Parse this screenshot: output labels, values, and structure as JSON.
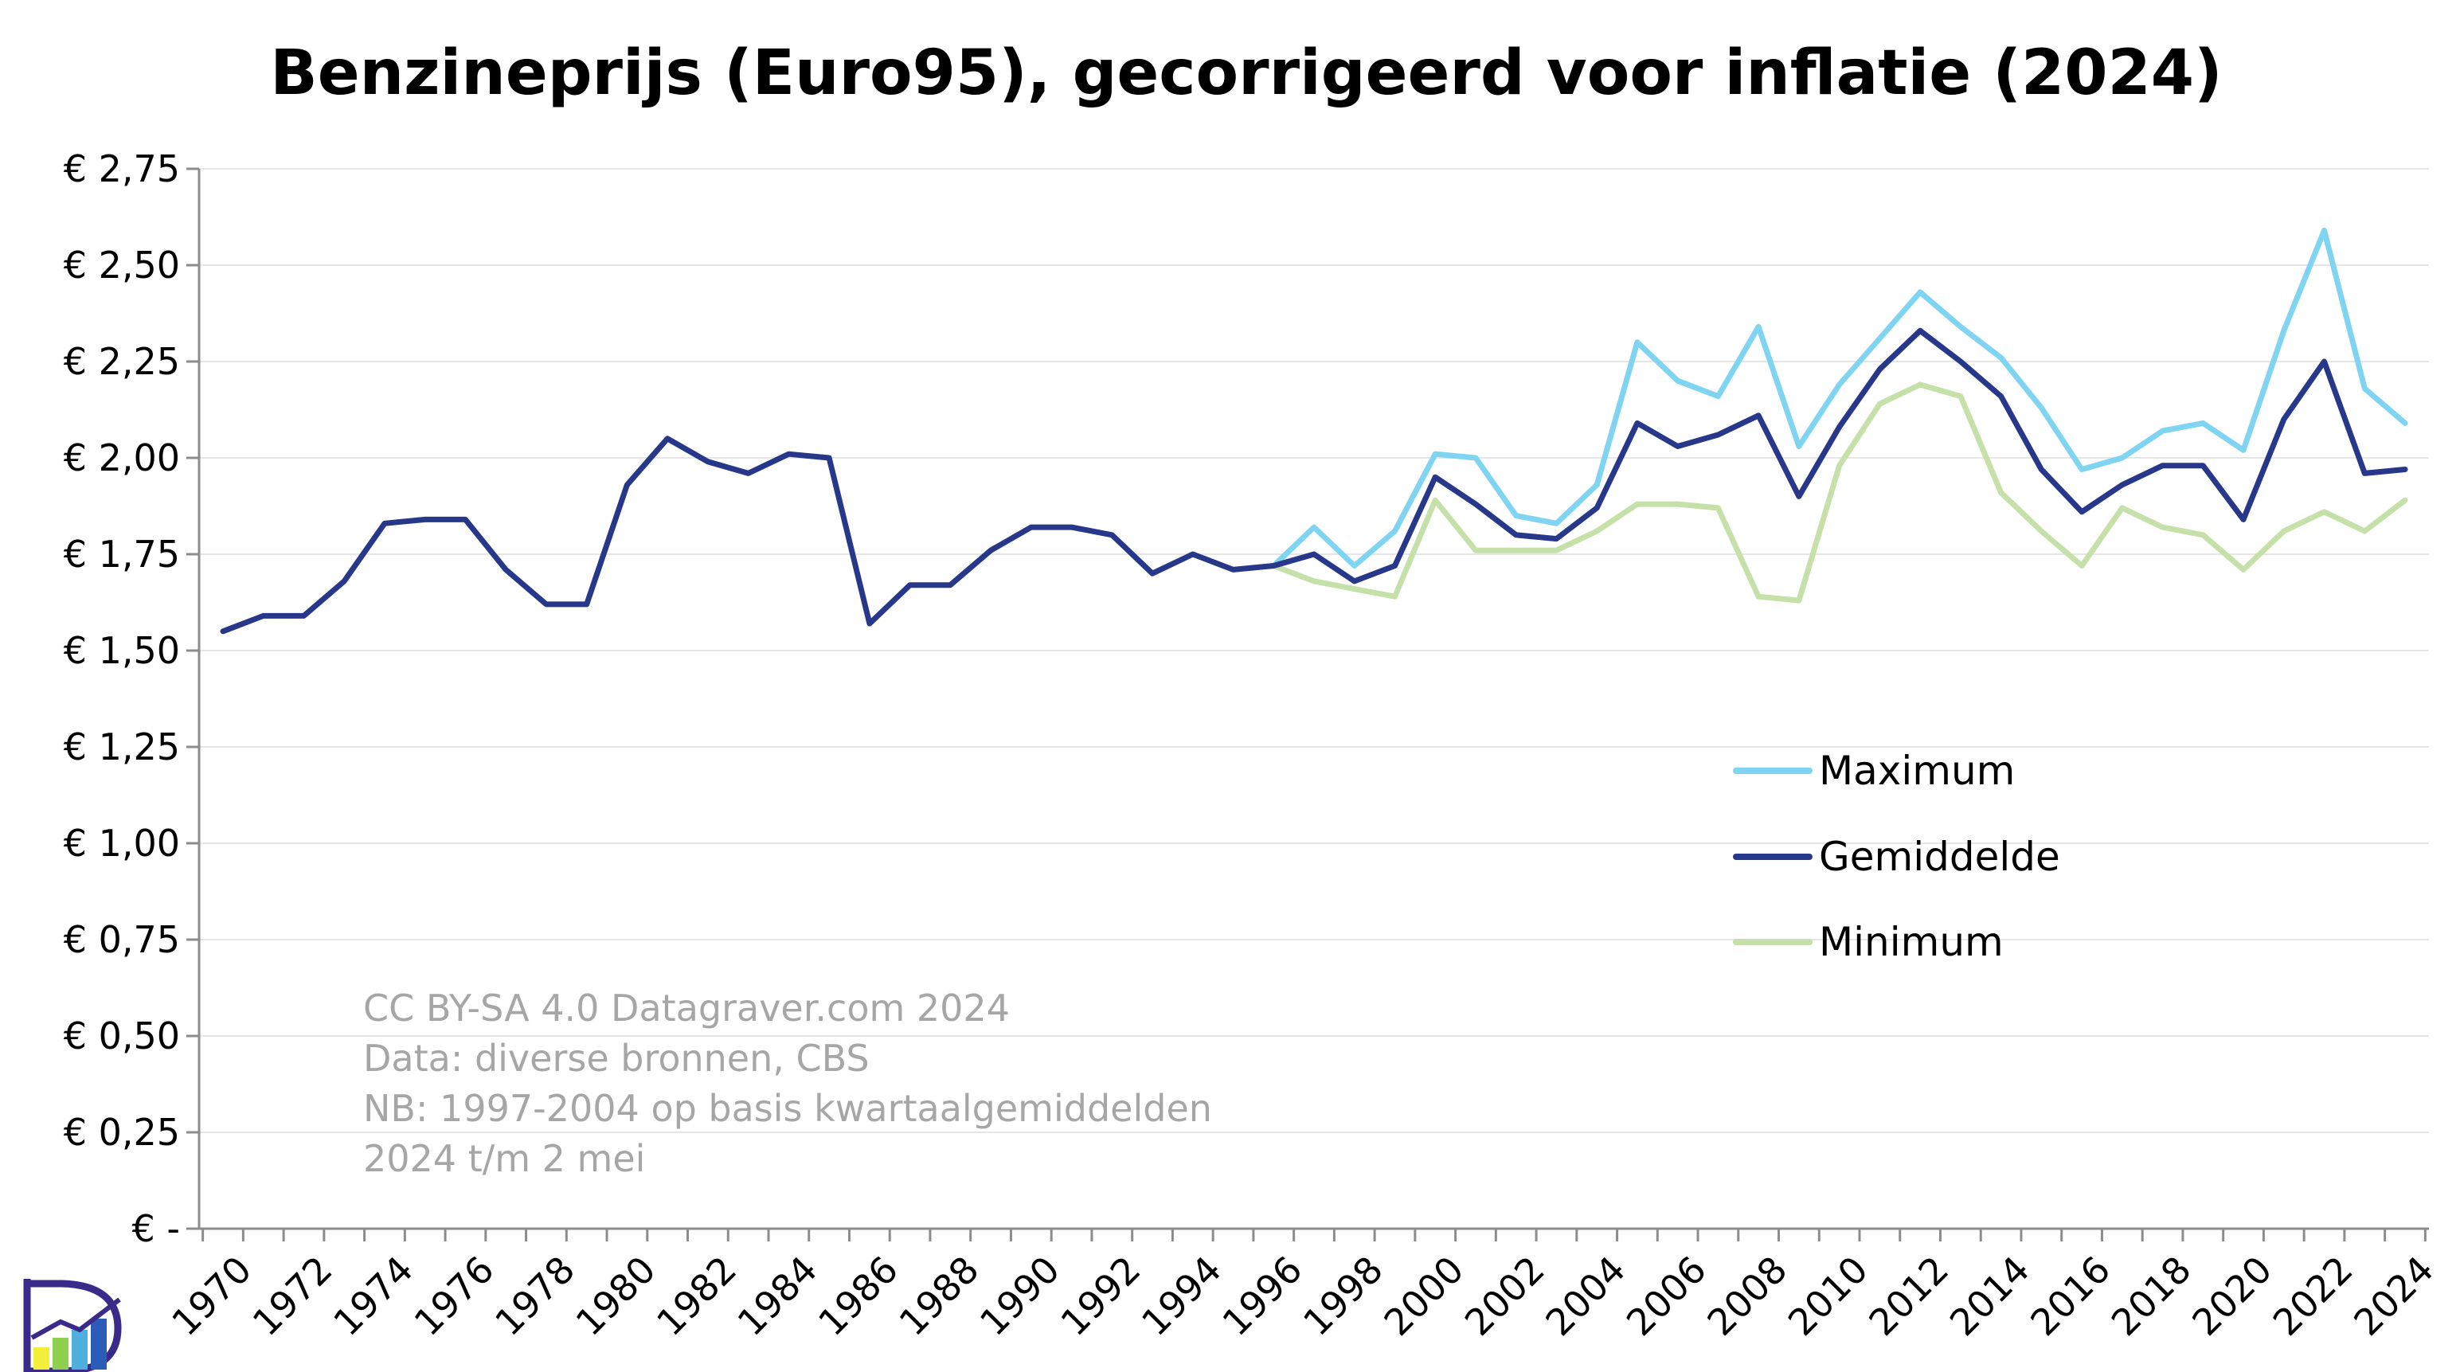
{
  "chart_data": {
    "type": "line",
    "title": "Benzineprijs (Euro95), gecorrigeerd voor inflatie (2024)",
    "xlabel": "",
    "ylabel": "",
    "ylim": [
      0,
      2.75
    ],
    "yticks": [
      0,
      0.25,
      0.5,
      0.75,
      1.0,
      1.25,
      1.5,
      1.75,
      2.0,
      2.25,
      2.5,
      2.75
    ],
    "ytick_labels": [
      "€ -",
      "€ 0,25",
      "€ 0,50",
      "€ 0,75",
      "€ 1,00",
      "€ 1,25",
      "€ 1,50",
      "€ 1,75",
      "€ 2,00",
      "€ 2,25",
      "€ 2,50",
      "€ 2,75"
    ],
    "xlim": [
      1970,
      2024
    ],
    "xticks": [
      1970,
      1972,
      1974,
      1976,
      1978,
      1980,
      1982,
      1984,
      1986,
      1988,
      1990,
      1992,
      1994,
      1996,
      1998,
      2000,
      2002,
      2004,
      2006,
      2008,
      2010,
      2012,
      2014,
      2016,
      2018,
      2020,
      2022,
      2024
    ],
    "grid": true,
    "legend_position": "right-middle",
    "series": [
      {
        "name": "Maximum",
        "color": "#7fd4f2",
        "x": [
          1996,
          1997,
          1998,
          1999,
          2000,
          2001,
          2002,
          2003,
          2004,
          2005,
          2006,
          2007,
          2008,
          2009,
          2010,
          2011,
          2012,
          2013,
          2014,
          2015,
          2016,
          2017,
          2018,
          2019,
          2020,
          2021,
          2022,
          2023,
          2024
        ],
        "values": [
          1.72,
          1.82,
          1.72,
          1.81,
          2.01,
          2.0,
          1.85,
          1.83,
          1.93,
          2.3,
          2.2,
          2.16,
          2.34,
          2.03,
          2.19,
          2.31,
          2.43,
          2.34,
          2.26,
          2.13,
          1.97,
          2.0,
          2.07,
          2.09,
          2.02,
          2.33,
          2.59,
          2.18,
          2.09
        ]
      },
      {
        "name": "Gemiddelde",
        "color": "#27378a",
        "x": [
          1970,
          1971,
          1972,
          1973,
          1974,
          1975,
          1976,
          1977,
          1978,
          1979,
          1980,
          1981,
          1982,
          1983,
          1984,
          1985,
          1986,
          1987,
          1988,
          1989,
          1990,
          1991,
          1992,
          1993,
          1994,
          1995,
          1996,
          1997,
          1998,
          1999,
          2000,
          2001,
          2002,
          2003,
          2004,
          2005,
          2006,
          2007,
          2008,
          2009,
          2010,
          2011,
          2012,
          2013,
          2014,
          2015,
          2016,
          2017,
          2018,
          2019,
          2020,
          2021,
          2022,
          2023,
          2024
        ],
        "values": [
          1.55,
          1.59,
          1.59,
          1.68,
          1.83,
          1.84,
          1.84,
          1.71,
          1.62,
          1.62,
          1.93,
          2.05,
          1.99,
          1.96,
          2.01,
          2.0,
          1.57,
          1.67,
          1.67,
          1.76,
          1.82,
          1.82,
          1.8,
          1.7,
          1.75,
          1.71,
          1.72,
          1.75,
          1.68,
          1.72,
          1.95,
          1.88,
          1.8,
          1.79,
          1.87,
          2.09,
          2.03,
          2.06,
          2.11,
          1.9,
          2.08,
          2.23,
          2.33,
          2.25,
          2.16,
          1.97,
          1.86,
          1.93,
          1.98,
          1.98,
          1.84,
          2.1,
          2.25,
          1.96,
          1.97
        ]
      },
      {
        "name": "Minimum",
        "color": "#c5e0a8",
        "x": [
          1996,
          1997,
          1998,
          1999,
          2000,
          2001,
          2002,
          2003,
          2004,
          2005,
          2006,
          2007,
          2008,
          2009,
          2010,
          2011,
          2012,
          2013,
          2014,
          2015,
          2016,
          2017,
          2018,
          2019,
          2020,
          2021,
          2022,
          2023,
          2024
        ],
        "values": [
          1.72,
          1.68,
          1.66,
          1.64,
          1.89,
          1.76,
          1.76,
          1.76,
          1.81,
          1.88,
          1.88,
          1.87,
          1.64,
          1.63,
          1.98,
          2.14,
          2.19,
          2.16,
          1.91,
          1.81,
          1.72,
          1.87,
          1.82,
          1.8,
          1.71,
          1.81,
          1.86,
          1.81,
          1.89
        ]
      }
    ],
    "annotations": [
      "CC BY-SA 4.0 Datagraver.com 2024",
      "Data: diverse bronnen, CBS",
      "NB: 1997-2004 op basis kwartaalgemiddelden",
      "2024 t/m 2 mei"
    ],
    "logo": {
      "icon": "datagraver-logo-icon",
      "colors": [
        "#3a2a8a",
        "#f2ee3a",
        "#8fd14f",
        "#4fb0e0",
        "#2b5cb8"
      ]
    }
  }
}
